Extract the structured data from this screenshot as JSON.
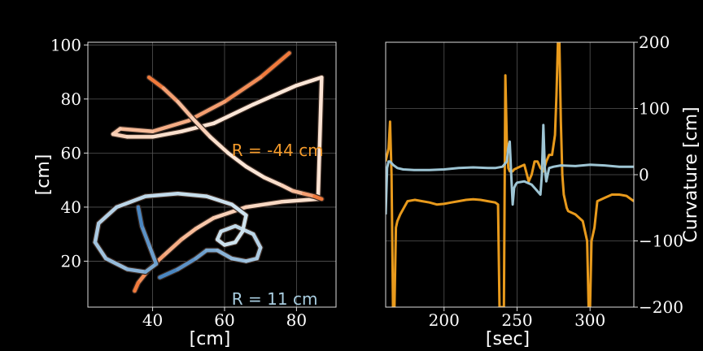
{
  "chart_data": [
    {
      "type": "line",
      "panel": "trajectory",
      "xlabel": "[cm]",
      "ylabel": "[cm]",
      "xlim": [
        22,
        91
      ],
      "ylim": [
        3,
        101
      ],
      "xticks": [
        40,
        60,
        80
      ],
      "yticks": [
        20,
        40,
        60,
        80,
        100
      ],
      "grid": true,
      "annotations": [
        {
          "text": "R = -44 cm",
          "x": 62,
          "y": 61,
          "color": "#f59b2b"
        },
        {
          "text": "R = 11 cm",
          "x": 62,
          "y": 6,
          "color": "#a8cde0"
        }
      ],
      "series": [
        {
          "path_type": "curvature-colored trajectory (orange)",
          "color_hot": "#f07a3c",
          "color_light": "#fbe7d8",
          "x": [
            78,
            70,
            60,
            50,
            40,
            31,
            29,
            33,
            40,
            48,
            57,
            68,
            80,
            87,
            86,
            76,
            66,
            57,
            52,
            48,
            43,
            39,
            36,
            35
          ],
          "y": [
            97,
            88,
            79,
            72,
            68,
            69,
            67,
            66,
            66,
            68,
            71,
            78,
            85,
            88,
            43,
            42,
            40,
            36,
            32,
            28,
            22,
            17,
            12,
            9
          ]
        },
        {
          "path_type": "curvature-colored trajectory (orange), second strand",
          "color_hot": "#f07a3c",
          "color_light": "#fbe7d8",
          "x": [
            39,
            43,
            47,
            51,
            56,
            61,
            66,
            71,
            76,
            79,
            82,
            85,
            87
          ],
          "y": [
            88,
            84,
            79,
            73,
            66,
            60,
            55,
            51,
            48,
            46,
            45,
            44,
            43
          ]
        },
        {
          "path_type": "curvature-colored trajectory (blue)",
          "color_hot": "#4a86c0",
          "color_light": "#cfe3ee",
          "x": [
            42,
            47,
            52,
            55,
            58,
            62,
            66,
            69,
            70,
            68,
            63,
            59,
            58,
            60,
            63,
            65,
            66,
            62,
            55,
            47,
            38,
            30,
            25,
            24,
            27,
            33,
            38,
            41,
            39,
            37,
            36
          ],
          "y": [
            14,
            17,
            21,
            24,
            24,
            21,
            20,
            21,
            25,
            30,
            33,
            31,
            28,
            26,
            27,
            31,
            37,
            41,
            44,
            45,
            44,
            40,
            34,
            27,
            21,
            17,
            16,
            19,
            26,
            33,
            40
          ]
        }
      ]
    },
    {
      "type": "line",
      "panel": "curvature",
      "xlabel": "[sec]",
      "ylabel": "Curvature [cm]",
      "xlim": [
        160,
        330
      ],
      "ylim": [
        -200,
        200
      ],
      "xticks": [
        200,
        250,
        300
      ],
      "yticks": [
        -200,
        -100,
        0,
        100,
        200
      ],
      "grid": true,
      "series": [
        {
          "color": "#e89a1c",
          "x": [
            160,
            162,
            163,
            164,
            165,
            166,
            167,
            168,
            170,
            175,
            180,
            185,
            190,
            195,
            200,
            205,
            210,
            215,
            220,
            225,
            230,
            235,
            237,
            238,
            240,
            241,
            242,
            243,
            244,
            245,
            247,
            248,
            250,
            255,
            258,
            260,
            262,
            264,
            266,
            268,
            270,
            272,
            274,
            276,
            277,
            278,
            279,
            280,
            281,
            282,
            283,
            284,
            285,
            290,
            295,
            298,
            299,
            300,
            301,
            303,
            305,
            310,
            315,
            320,
            325,
            330
          ],
          "y": [
            20,
            40,
            80,
            0,
            -200,
            -200,
            -80,
            -70,
            -60,
            -40,
            -38,
            -40,
            -42,
            -45,
            -44,
            -42,
            -40,
            -38,
            -37,
            -38,
            -40,
            -42,
            -45,
            -200,
            -200,
            -200,
            150,
            50,
            10,
            5,
            5,
            8,
            10,
            15,
            -10,
            0,
            20,
            20,
            10,
            5,
            20,
            30,
            30,
            60,
            120,
            200,
            200,
            80,
            0,
            -30,
            -40,
            -50,
            -55,
            -60,
            -70,
            -100,
            -200,
            -200,
            -100,
            -80,
            -40,
            -35,
            -30,
            -30,
            -32,
            -40
          ]
        },
        {
          "color": "#9ec5d4",
          "x": [
            160,
            161,
            162,
            163,
            165,
            168,
            172,
            180,
            190,
            200,
            210,
            220,
            230,
            235,
            240,
            243,
            244,
            245,
            246,
            247,
            248,
            249,
            250,
            255,
            260,
            262,
            264,
            266,
            267,
            268,
            269,
            270,
            272,
            275,
            280,
            290,
            300,
            310,
            320,
            330
          ],
          "y": [
            -60,
            10,
            20,
            20,
            15,
            10,
            8,
            7,
            7,
            8,
            10,
            11,
            10,
            10,
            12,
            20,
            40,
            50,
            0,
            -45,
            -20,
            -15,
            -12,
            -10,
            -15,
            -20,
            -25,
            -30,
            0,
            75,
            10,
            -10,
            10,
            12,
            14,
            13,
            15,
            14,
            12,
            12
          ]
        }
      ]
    }
  ]
}
